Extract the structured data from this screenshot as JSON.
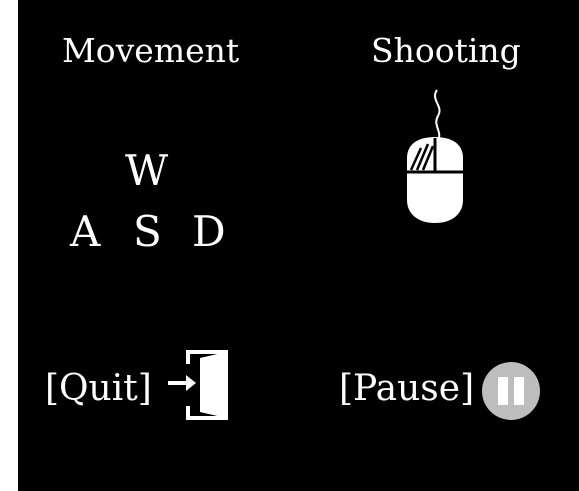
{
  "movement": {
    "title": "Movement",
    "keys": {
      "up": "W",
      "left": "A",
      "down": "S",
      "right": "D"
    }
  },
  "shooting": {
    "title": "Shooting",
    "icon": "mouse-icon"
  },
  "quit": {
    "label": "[Quit]",
    "icon": "exit-door-icon"
  },
  "pause": {
    "label": "[Pause]",
    "icon": "pause-icon",
    "icon_color": "#bdbdbd"
  },
  "colors": {
    "background": "#000000",
    "text": "#ffffff"
  }
}
